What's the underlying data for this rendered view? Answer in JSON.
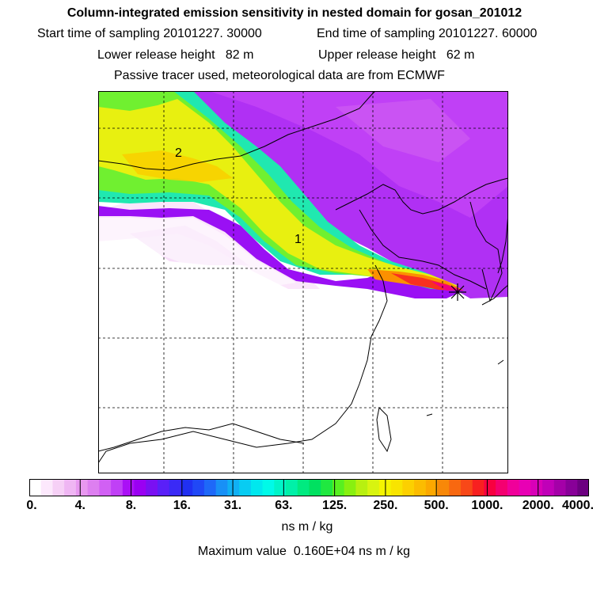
{
  "header": {
    "title": "Column-integrated emission sensitivity in nested domain for gosan_201012",
    "start_label": "Start time of sampling",
    "start_value": "20101227. 30000",
    "end_label": "End time of sampling",
    "end_value": "20101227. 60000",
    "lower_label": "Lower release height",
    "lower_value": "82 m",
    "upper_label": "Upper release height",
    "upper_value": "62 m",
    "note": "Passive tracer used, meteorological data are from ECMWF"
  },
  "map": {
    "contour_labels": [
      "1",
      "2"
    ],
    "release_marker": "asterisk-marker"
  },
  "colorbar": {
    "tick_labels": [
      "0.",
      "4.",
      "8.",
      "16.",
      "31.",
      "63.",
      "125.",
      "250.",
      "500.",
      "1000.",
      "2000.",
      "4000."
    ],
    "colors": [
      "#ffffff",
      "#fce8fc",
      "#f6d0f6",
      "#efb6f3",
      "#e898f0",
      "#dd7ff0",
      "#d160f4",
      "#c040f6",
      "#aa10f6",
      "#9a00f2",
      "#7a10f2",
      "#5a20f8",
      "#3a2af6",
      "#2030f2",
      "#2048f6",
      "#1e68f8",
      "#1890f6",
      "#10b0f4",
      "#08ccf2",
      "#00e8ee",
      "#00fae8",
      "#00f4c8",
      "#00f0a8",
      "#00ea80",
      "#00e060",
      "#20e840",
      "#58f020",
      "#88f010",
      "#b8f010",
      "#d8f410",
      "#f4f400",
      "#f8e400",
      "#fcd000",
      "#fcbc00",
      "#fca800",
      "#f88808",
      "#f86810",
      "#f84818",
      "#f82020",
      "#f80040",
      "#f40070",
      "#f0009a",
      "#e800b4",
      "#d800b8",
      "#c000b8",
      "#a400a8",
      "#880098",
      "#6c0080"
    ],
    "units": "ns m / kg",
    "max_label": "Maximum value",
    "max_value": "0.160E+04",
    "max_units": "ns m / kg"
  }
}
